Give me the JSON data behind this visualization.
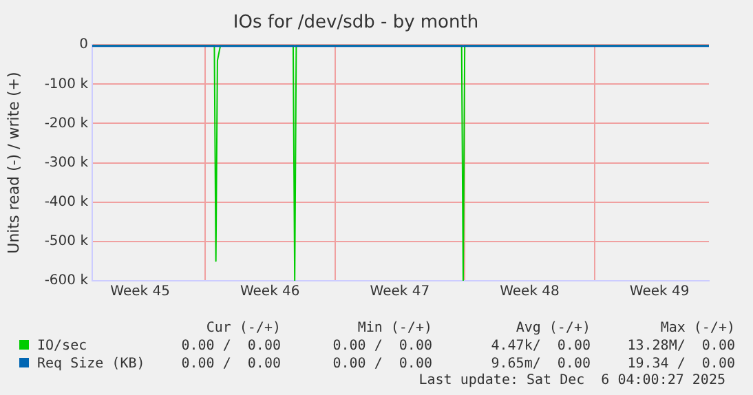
{
  "chart_data": {
    "type": "line",
    "title": "IOs for /dev/sdb - by month",
    "ylabel": "Units read (-) / write (+)",
    "xlim": [
      "2025-11-03T22:00",
      "2025-12-07T04:00"
    ],
    "xticks": [
      {
        "value": "2025-11-06T12:00",
        "label": "Week 45"
      },
      {
        "value": "2025-11-10T00:00",
        "label": null
      },
      {
        "value": "2025-11-13T12:00",
        "label": "Week 46"
      },
      {
        "value": "2025-11-17T00:00",
        "label": null
      },
      {
        "value": "2025-11-20T12:00",
        "label": "Week 47"
      },
      {
        "value": "2025-11-24T00:00",
        "label": null
      },
      {
        "value": "2025-11-27T12:00",
        "label": "Week 48"
      },
      {
        "value": "2025-12-01T00:00",
        "label": null
      },
      {
        "value": "2025-12-04T12:00",
        "label": "Week 49"
      }
    ],
    "ylim": [
      -600000,
      0
    ],
    "yticks": [
      {
        "value": -600000,
        "label": "-600 k"
      },
      {
        "value": -500000,
        "label": "-500 k"
      },
      {
        "value": -400000,
        "label": "-400 k"
      },
      {
        "value": -300000,
        "label": "-300 k"
      },
      {
        "value": -200000,
        "label": "-200 k"
      },
      {
        "value": -100000,
        "label": "-100 k"
      },
      0
    ],
    "series": [
      {
        "name": "IO/sec",
        "color": "#00cc00",
        "x": [
          "2025-11-03T22:00",
          "2025-11-10T12:00",
          "2025-11-10T14:00",
          "2025-11-10T16:00",
          "2025-11-10T20:00",
          "2025-11-14T18:00",
          "2025-11-14T20:00",
          "2025-11-14T22:00",
          "2025-11-23T20:00",
          "2025-11-23T22:00",
          "2025-11-24T00:00",
          "2025-12-07T04:00"
        ],
        "values": [
          0,
          0,
          -550000,
          -40000,
          0,
          0,
          -600000,
          0,
          0,
          -600000,
          0,
          0
        ]
      },
      {
        "name": "Req Size (KB)",
        "color": "#0066b3",
        "x": [
          "2025-11-03T22:00",
          "2025-12-07T04:00"
        ],
        "values": [
          0,
          0
        ]
      }
    ],
    "grid": true,
    "legend": "bottom",
    "marker": "none",
    "line_style": "solid",
    "annotations": [
      "Cur (-/+)",
      "Min (-/+)",
      "Avg (-/+)",
      "Max (-/+)",
      "0.00 /  0.00",
      "0.00 /  0.00",
      "4.47k/  0.00",
      "13.28M/  0.00",
      "0.00 /  0.00",
      "0.00 /  0.00",
      "9.65m/  0.00",
      "19.34 /  0.00",
      "Last update: Sat Dec  6 04:00:27 2025"
    ]
  }
}
